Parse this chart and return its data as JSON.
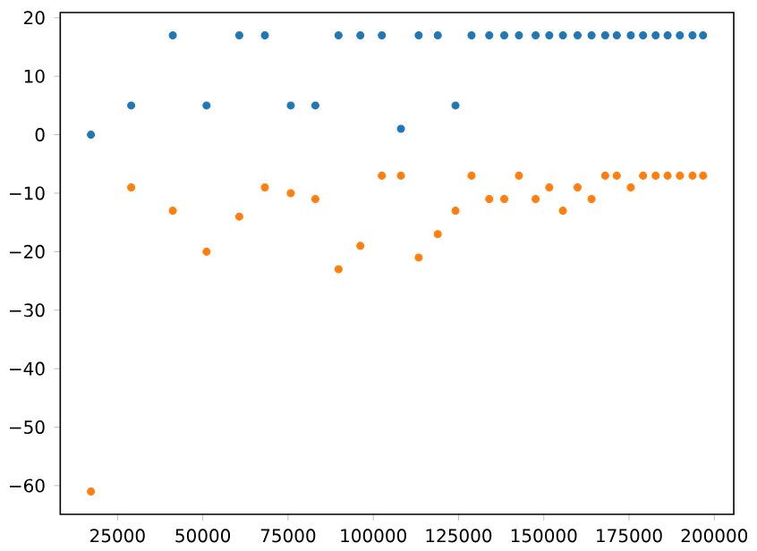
{
  "chart_data": {
    "type": "scatter",
    "x": [
      17200,
      29000,
      41200,
      51100,
      60700,
      68200,
      75800,
      83000,
      89800,
      96200,
      102500,
      108100,
      113300,
      118900,
      124100,
      128800,
      134000,
      138400,
      142700,
      147600,
      151600,
      155600,
      159900,
      164000,
      168000,
      171400,
      175500,
      179100,
      182800,
      186300,
      189900,
      193600,
      196700
    ],
    "series": [
      {
        "color": "#1f77b4",
        "values": [
          0,
          5,
          17,
          5,
          17,
          17,
          5,
          5,
          17,
          17,
          17,
          1,
          17,
          17,
          5,
          17,
          17,
          17,
          17,
          17,
          17,
          17,
          17,
          17,
          17,
          17,
          17,
          17,
          17,
          17,
          17,
          17,
          17
        ]
      },
      {
        "color": "#ff7f0e",
        "values": [
          -61,
          -9,
          -13,
          -20,
          -14,
          -9,
          -10,
          -11,
          -23,
          -19,
          -7,
          -7,
          -21,
          -17,
          -13,
          -7,
          -11,
          -11,
          -7,
          -11,
          -9,
          -13,
          -9,
          -11,
          -7,
          -7,
          -9,
          -7,
          -7,
          -7,
          -7,
          -7,
          -7
        ]
      }
    ],
    "xlim": [
      8200,
      205700
    ],
    "ylim": [
      -64.9,
      20.9
    ],
    "xticks": [
      25000,
      50000,
      75000,
      100000,
      125000,
      150000,
      175000,
      200000
    ],
    "yticks": [
      {
        "value": -60,
        "label": "−60"
      },
      {
        "value": -50,
        "label": "−50"
      },
      {
        "value": -40,
        "label": "−40"
      },
      {
        "value": -30,
        "label": "−30"
      },
      {
        "value": -20,
        "label": "−20"
      },
      {
        "value": -10,
        "label": "−10"
      },
      0,
      10,
      20
    ],
    "marker": "circle",
    "grid": false
  }
}
